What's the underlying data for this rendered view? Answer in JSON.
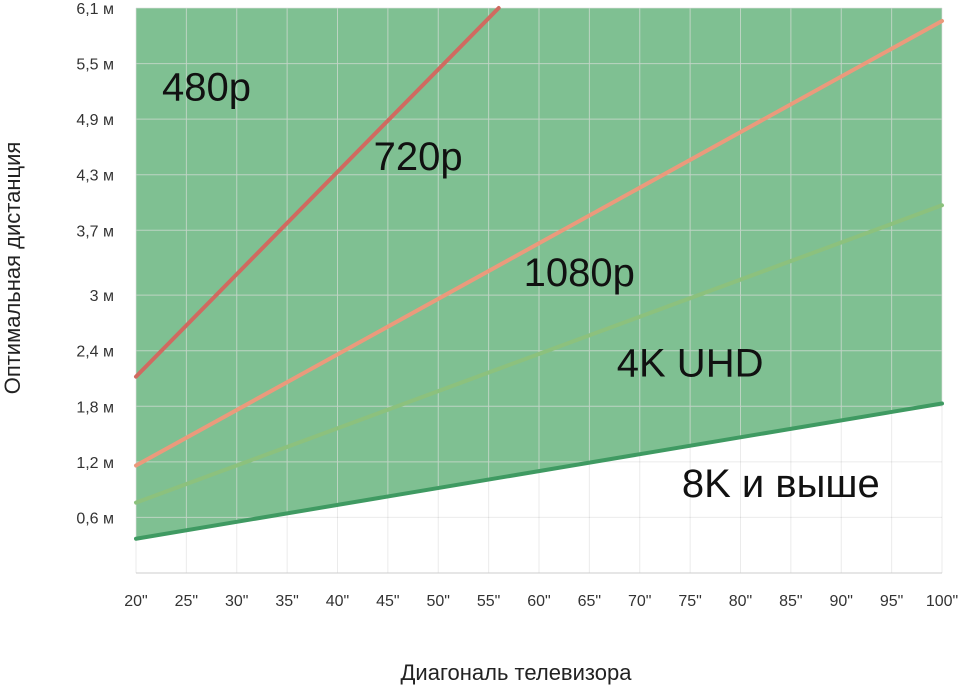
{
  "chart_data": {
    "type": "area",
    "xlabel": "Диагональ телевизора",
    "ylabel": "Оптимальная дистанция",
    "x_categories": [
      "20\"",
      "25\"",
      "30\"",
      "35\"",
      "40\"",
      "45\"",
      "50\"",
      "55\"",
      "60\"",
      "65\"",
      "70\"",
      "75\"",
      "80\"",
      "85\"",
      "90\"",
      "95\"",
      "100\""
    ],
    "x_values": [
      20,
      25,
      30,
      35,
      40,
      45,
      50,
      55,
      60,
      65,
      70,
      75,
      80,
      85,
      90,
      95,
      100
    ],
    "y_ticks": [
      0.6,
      1.2,
      1.8,
      2.4,
      3,
      3.7,
      4.3,
      4.9,
      5.5,
      6.1
    ],
    "y_tick_labels": [
      "0,6 м",
      "1,2 м",
      "1,8 м",
      "2,4 м",
      "3 м",
      "3,7 м",
      "4,3 м",
      "4,9 м",
      "5,5 м",
      "6,1 м"
    ],
    "ylim": [
      0,
      6.1
    ],
    "xlim": [
      20,
      100
    ],
    "grid": true,
    "lines": [
      {
        "name": "480p",
        "points": [
          [
            20,
            2.12
          ],
          [
            56,
            6.1
          ]
        ],
        "color": "#d06a60",
        "fill": "#f0a08f"
      },
      {
        "name": "720p",
        "points": [
          [
            20,
            1.16
          ],
          [
            100,
            5.96
          ]
        ],
        "color": "#eb9a7c",
        "fill": "#f6b597"
      },
      {
        "name": "1080p",
        "points": [
          [
            20,
            0.76
          ],
          [
            100,
            3.97
          ]
        ],
        "color": "#8cc17d",
        "fill": "#acd69b"
      },
      {
        "name": "4K UHD",
        "points": [
          [
            20,
            0.37
          ],
          [
            100,
            1.83
          ]
        ],
        "color": "#3f9a62",
        "fill": "#7fc092"
      }
    ],
    "zone_labels": [
      {
        "text": "480p",
        "x": 27,
        "y": 5.1
      },
      {
        "text": "720p",
        "x": 48,
        "y": 4.35
      },
      {
        "text": "1080p",
        "x": 64,
        "y": 3.1
      },
      {
        "text": "4K UHD",
        "x": 75,
        "y": 2.12
      },
      {
        "text": "8K  и выше",
        "x": 84,
        "y": 0.82
      }
    ]
  }
}
